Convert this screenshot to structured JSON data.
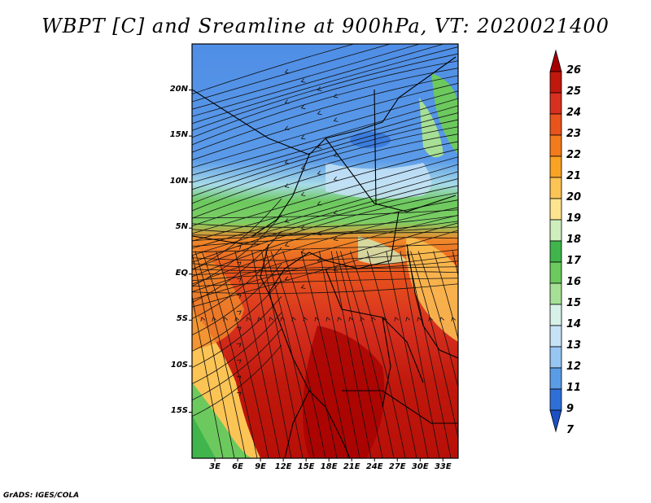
{
  "title": "WBPT [C] and Sreamline at 900hPa, VT: 2020021400",
  "credit": "GrADS: IGES/COLA",
  "map": {
    "lat_labels": [
      "20N",
      "15N",
      "10N",
      "5N",
      "EQ",
      "5S",
      "10S",
      "15S"
    ],
    "lat_values": [
      20,
      15,
      10,
      5,
      0,
      -5,
      -10,
      -15
    ],
    "lon_labels": [
      "3E",
      "6E",
      "9E",
      "12E",
      "15E",
      "18E",
      "21E",
      "24E",
      "27E",
      "30E",
      "33E"
    ],
    "lon_values": [
      3,
      6,
      9,
      12,
      15,
      18,
      21,
      24,
      27,
      30,
      33
    ],
    "lon_range": [
      0,
      35
    ],
    "lat_range": [
      -20,
      25
    ]
  },
  "colorbar": {
    "labels": [
      "26",
      "25",
      "24",
      "23",
      "22",
      "21",
      "20",
      "19",
      "18",
      "17",
      "16",
      "15",
      "14",
      "13",
      "12",
      "11",
      "9",
      "7"
    ],
    "colors": [
      "#a50000",
      "#c0180c",
      "#d7301f",
      "#e8541c",
      "#f37b1b",
      "#f9a224",
      "#fcc455",
      "#fde48f",
      "#cfeebd",
      "#3fb54b",
      "#6cc95e",
      "#a6df95",
      "#d8f1e8",
      "#c6e2f7",
      "#97c6f2",
      "#5b9ce6",
      "#2f6fd8",
      "#1c4fc4"
    ]
  }
}
